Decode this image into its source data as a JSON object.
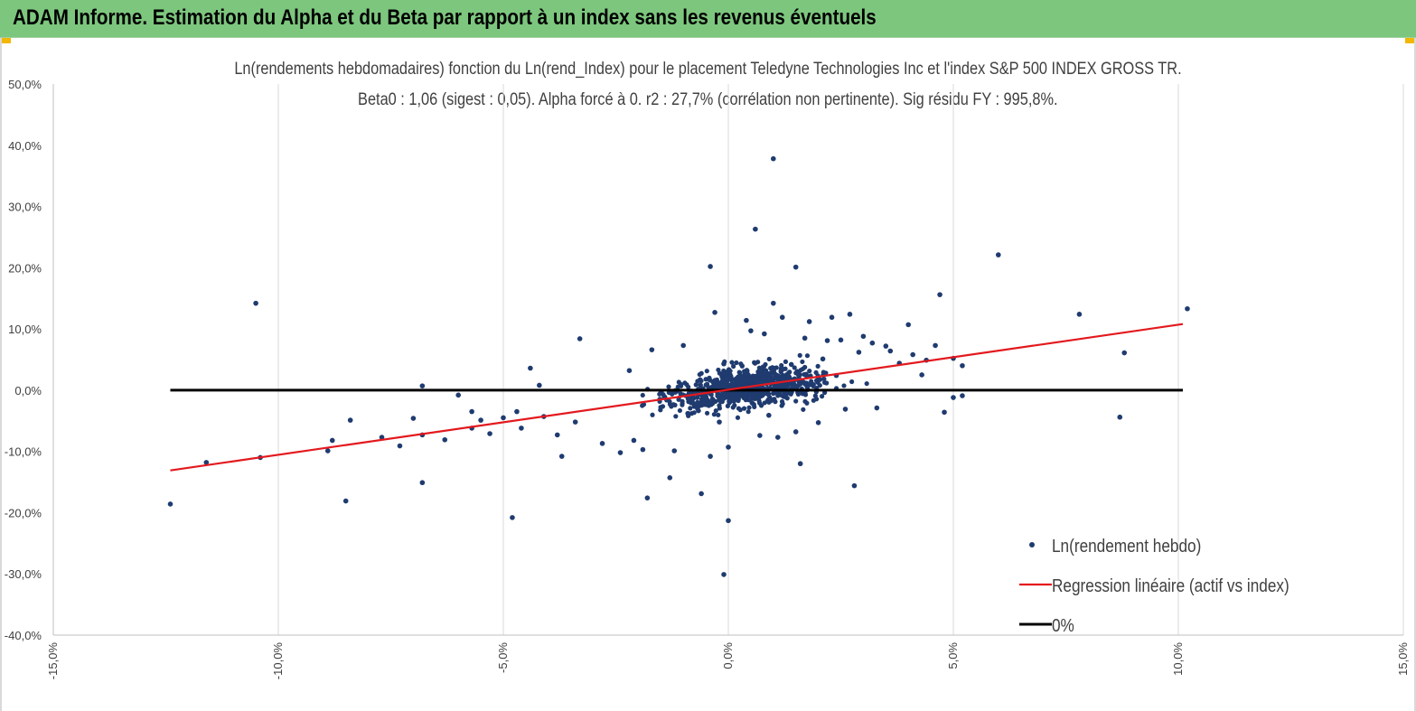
{
  "banner": {
    "title": "ADAM Informe. Estimation du Alpha et du Beta par rapport à un index sans les revenus éventuels",
    "bg_color": "#7dc67e",
    "corner_color": "#f2b705"
  },
  "chart_data": {
    "type": "scatter",
    "title_line1": "Ln(rendements hebdomadaires) fonction du Ln(rend_Index) pour le placement Teledyne Technologies Inc et l'index S&P 500 INDEX GROSS TR.",
    "title_line2": "Beta0 : 1,06 (sigest : 0,05). Alpha forcé à 0. r2 : 27,7% (corrélation non pertinente). Sig résidu FY : 995,8%.",
    "xlabel": "",
    "ylabel": "",
    "xlim": [
      -0.15,
      0.15
    ],
    "ylim": [
      -0.4,
      0.5
    ],
    "x_ticks": [
      -0.15,
      -0.1,
      -0.05,
      0.0,
      0.05,
      0.1,
      0.15
    ],
    "x_tick_labels": [
      "-15,0%",
      "-10,0%",
      "-5,0%",
      "0,0%",
      "5,0%",
      "10,0%",
      "15,0%"
    ],
    "y_ticks": [
      0.5,
      0.4,
      0.3,
      0.2,
      0.1,
      0.0,
      -0.1,
      -0.2,
      -0.3,
      -0.4
    ],
    "y_tick_labels": [
      "50,0%",
      "40,0%",
      "30,0%",
      "20,0%",
      "10,0%",
      "0,0%",
      "-10,0%",
      "-20,0%",
      "-30,0%",
      "-40,0%"
    ],
    "grid": "vertical",
    "legend_position": "bottom-right",
    "series": [
      {
        "name": "Ln(rendement hebdo)",
        "kind": "scatter",
        "color": "#1f3b6f",
        "points": [
          [
            -0.124,
            -0.186
          ],
          [
            -0.116,
            -0.118
          ],
          [
            -0.105,
            0.142
          ],
          [
            -0.104,
            -0.11
          ],
          [
            -0.089,
            -0.099
          ],
          [
            -0.088,
            -0.082
          ],
          [
            -0.085,
            -0.181
          ],
          [
            -0.084,
            -0.049
          ],
          [
            -0.077,
            -0.077
          ],
          [
            -0.073,
            -0.091
          ],
          [
            -0.07,
            -0.046
          ],
          [
            -0.068,
            -0.151
          ],
          [
            -0.068,
            -0.073
          ],
          [
            -0.068,
            0.007
          ],
          [
            -0.063,
            -0.081
          ],
          [
            -0.06,
            -0.008
          ],
          [
            -0.057,
            -0.062
          ],
          [
            -0.057,
            -0.035
          ],
          [
            -0.055,
            -0.049
          ],
          [
            -0.053,
            -0.071
          ],
          [
            -0.05,
            -0.045
          ],
          [
            -0.048,
            -0.208
          ],
          [
            -0.047,
            -0.035
          ],
          [
            -0.046,
            -0.062
          ],
          [
            -0.044,
            0.036
          ],
          [
            -0.042,
            0.008
          ],
          [
            -0.041,
            -0.043
          ],
          [
            -0.038,
            -0.073
          ],
          [
            -0.037,
            -0.108
          ],
          [
            -0.034,
            -0.052
          ],
          [
            -0.033,
            0.084
          ],
          [
            -0.028,
            -0.087
          ],
          [
            -0.024,
            -0.102
          ],
          [
            -0.022,
            0.032
          ],
          [
            -0.021,
            -0.082
          ],
          [
            -0.019,
            -0.097
          ],
          [
            -0.018,
            -0.176
          ],
          [
            -0.017,
            0.066
          ],
          [
            -0.015,
            -0.028
          ],
          [
            -0.013,
            -0.143
          ],
          [
            -0.012,
            -0.099
          ],
          [
            -0.01,
            0.073
          ],
          [
            -0.009,
            -0.038
          ],
          [
            -0.006,
            -0.169
          ],
          [
            -0.004,
            0.202
          ],
          [
            -0.004,
            -0.108
          ],
          [
            -0.003,
            0.127
          ],
          [
            -0.002,
            -0.052
          ],
          [
            -0.001,
            0.043
          ],
          [
            -0.001,
            -0.301
          ],
          [
            0.0,
            -0.213
          ],
          [
            0.0,
            -0.093
          ],
          [
            0.004,
            0.114
          ],
          [
            0.005,
            0.097
          ],
          [
            0.006,
            0.263
          ],
          [
            0.007,
            -0.074
          ],
          [
            0.008,
            0.092
          ],
          [
            0.009,
            -0.041
          ],
          [
            0.01,
            0.378
          ],
          [
            0.01,
            0.142
          ],
          [
            0.011,
            -0.077
          ],
          [
            0.012,
            0.119
          ],
          [
            0.014,
            0.042
          ],
          [
            0.015,
            0.201
          ],
          [
            0.015,
            -0.068
          ],
          [
            0.016,
            -0.12
          ],
          [
            0.017,
            0.085
          ],
          [
            0.018,
            0.112
          ],
          [
            0.02,
            -0.053
          ],
          [
            0.021,
            0.051
          ],
          [
            0.022,
            0.081
          ],
          [
            0.023,
            0.119
          ],
          [
            0.024,
            0.024
          ],
          [
            0.025,
            0.082
          ],
          [
            0.026,
            -0.031
          ],
          [
            0.027,
            0.124
          ],
          [
            0.028,
            -0.156
          ],
          [
            0.029,
            0.062
          ],
          [
            0.03,
            0.088
          ],
          [
            0.032,
            0.077
          ],
          [
            0.033,
            -0.029
          ],
          [
            0.035,
            0.072
          ],
          [
            0.036,
            0.064
          ],
          [
            0.038,
            0.044
          ],
          [
            0.04,
            0.107
          ],
          [
            0.041,
            0.058
          ],
          [
            0.043,
            0.025
          ],
          [
            0.044,
            0.049
          ],
          [
            0.046,
            0.073
          ],
          [
            0.047,
            0.156
          ],
          [
            0.048,
            -0.036
          ],
          [
            0.05,
            0.052
          ],
          [
            0.05,
            -0.012
          ],
          [
            0.052,
            0.04
          ],
          [
            0.052,
            -0.009
          ],
          [
            0.06,
            0.221
          ],
          [
            0.078,
            0.124
          ],
          [
            0.087,
            -0.044
          ],
          [
            0.088,
            0.061
          ],
          [
            0.102,
            0.133
          ]
        ]
      },
      {
        "name": "Regression linéaire (actif vs index)",
        "kind": "line",
        "color": "#e3191e",
        "x": [
          -0.124,
          0.101
        ],
        "y": [
          -0.131,
          0.108
        ]
      },
      {
        "name": "0%",
        "kind": "line",
        "color": "#000000",
        "x": [
          -0.124,
          0.101
        ],
        "y": [
          0.0,
          0.0
        ]
      }
    ],
    "note": "Dense cluster of ~800 weekly observations between x -3% and +3.5%, y roughly -8% to +8%, following the regression slope."
  }
}
